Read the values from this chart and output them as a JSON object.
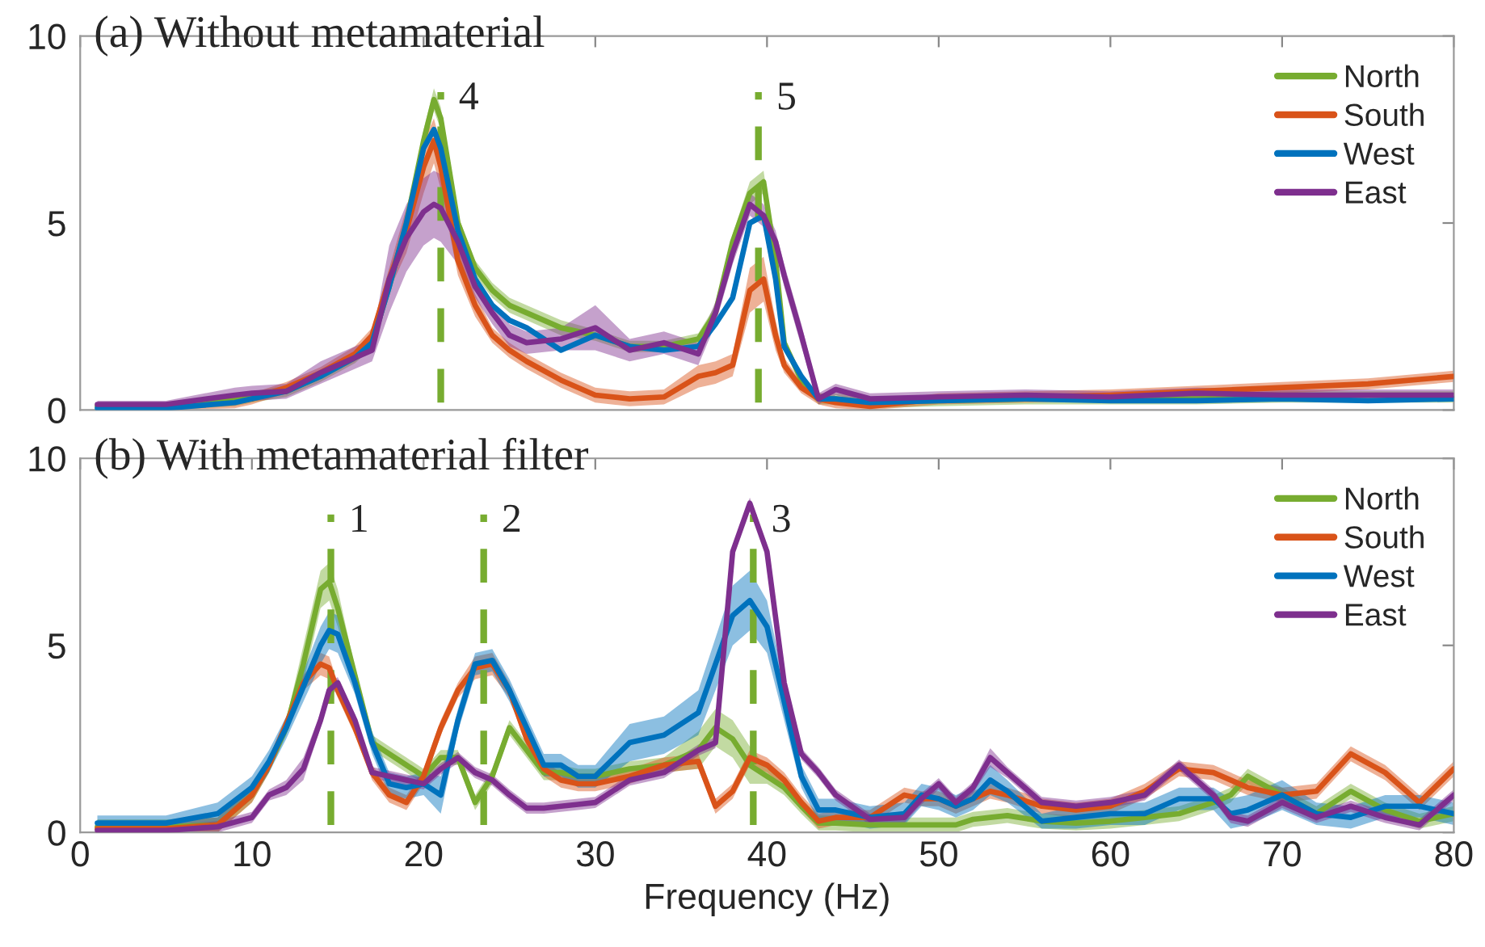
{
  "chart_data": [
    {
      "type": "line",
      "title": "(a) Without metamaterial",
      "xlim": [
        0,
        80
      ],
      "ylim": [
        0,
        10
      ],
      "xticks": [
        0,
        10,
        20,
        30,
        40,
        50,
        60,
        70,
        80
      ],
      "yticks": [
        0,
        5,
        10
      ],
      "tick_labels": "y",
      "grid": false,
      "legend": "top right",
      "x": [
        1,
        5,
        9,
        10,
        12,
        14,
        16,
        17,
        18,
        19,
        20,
        20.6,
        21,
        22,
        23,
        24,
        25,
        26,
        28,
        30,
        32,
        34,
        36,
        37,
        38,
        39,
        39.8,
        40.5,
        41,
        42,
        43,
        44,
        46,
        50,
        55,
        60,
        65,
        70,
        75,
        80
      ],
      "ref_lines": [
        {
          "axis": "x",
          "value": 21.0,
          "color": "#77ac30",
          "line_style": "dashed"
        },
        {
          "axis": "x",
          "value": 39.5,
          "color": "#77ac30",
          "line_style": "dashed"
        }
      ],
      "annotations": [
        {
          "text": "4",
          "x": 21.0,
          "y": 8.3
        },
        {
          "text": "5",
          "x": 39.5,
          "y": 8.3
        }
      ],
      "series": [
        {
          "name": "North",
          "color": "#77ac30",
          "values": [
            0.1,
            0.1,
            0.25,
            0.35,
            0.5,
            0.9,
            1.4,
            1.8,
            3.3,
            5.0,
            7.2,
            8.3,
            7.8,
            5.0,
            3.8,
            3.2,
            2.8,
            2.6,
            2.2,
            2.0,
            1.7,
            1.7,
            1.9,
            2.6,
            4.5,
            5.8,
            6.1,
            4.0,
            1.8,
            0.8,
            0.3,
            0.3,
            0.2,
            0.25,
            0.3,
            0.3,
            0.3,
            0.35,
            null,
            null
          ],
          "lower": [
            0,
            0,
            0.1,
            0.2,
            0.35,
            0.75,
            1.25,
            1.65,
            3.1,
            4.8,
            6.9,
            8.0,
            7.5,
            4.8,
            3.6,
            3.0,
            2.6,
            2.4,
            2.0,
            1.85,
            1.55,
            1.55,
            1.75,
            2.4,
            4.3,
            5.5,
            5.8,
            3.8,
            1.65,
            0.65,
            0.15,
            0.15,
            0.05,
            0.1,
            0.15,
            0.15,
            0.15,
            0.2,
            0.2,
            0.2
          ],
          "upper": [
            0.2,
            0.2,
            0.4,
            0.5,
            0.65,
            1.05,
            1.55,
            1.95,
            3.5,
            5.2,
            7.5,
            8.6,
            8.1,
            5.2,
            4.0,
            3.4,
            3.0,
            2.8,
            2.4,
            2.15,
            1.85,
            1.85,
            2.05,
            2.8,
            4.7,
            6.1,
            6.4,
            4.2,
            1.95,
            0.95,
            0.45,
            0.45,
            0.35,
            0.4,
            0.45,
            0.45,
            0.45,
            0.5,
            0.5,
            0.5
          ]
        },
        {
          "name": "South",
          "color": "#d95319",
          "values": [
            null,
            null,
            null,
            0.3,
            0.6,
            1.0,
            1.5,
            2.0,
            3.5,
            4.8,
            6.5,
            7.2,
            6.5,
            4.0,
            2.8,
            2.0,
            1.6,
            1.3,
            0.8,
            0.4,
            0.3,
            0.35,
            0.9,
            1.0,
            1.2,
            3.2,
            3.5,
            2.0,
            1.2,
            0.6,
            0.3,
            0.2,
            0.1,
            0.3,
            0.35,
            0.4,
            0.5,
            0.6,
            0.7,
            0.9
          ],
          "lower": [
            0,
            0,
            0.05,
            0.15,
            0.45,
            0.85,
            1.3,
            1.8,
            3.2,
            4.2,
            5.8,
            6.6,
            5.9,
            3.6,
            2.5,
            1.8,
            1.4,
            1.1,
            0.6,
            0.2,
            0.1,
            0.15,
            0.6,
            0.7,
            0.9,
            2.6,
            2.9,
            1.6,
            1.0,
            0.45,
            0.15,
            0.05,
            0,
            0.15,
            0.2,
            0.25,
            0.35,
            0.45,
            0.55,
            0.75
          ],
          "upper": [
            0.15,
            0.15,
            0.35,
            0.45,
            0.75,
            1.15,
            1.7,
            2.2,
            3.8,
            5.4,
            7.2,
            7.8,
            7.1,
            4.4,
            3.1,
            2.2,
            1.8,
            1.5,
            1.0,
            0.6,
            0.5,
            0.55,
            1.2,
            1.3,
            1.5,
            3.8,
            4.1,
            2.4,
            1.4,
            0.75,
            0.45,
            0.35,
            0.2,
            0.45,
            0.5,
            0.55,
            0.65,
            0.75,
            0.85,
            1.05
          ]
        },
        {
          "name": "West",
          "color": "#0072bd",
          "values": [
            0.05,
            0.05,
            0.2,
            0.3,
            0.5,
            0.9,
            1.4,
            1.8,
            3.3,
            5.0,
            7.0,
            7.5,
            7.0,
            4.8,
            3.5,
            2.8,
            2.4,
            2.2,
            1.6,
            2.0,
            1.7,
            1.6,
            1.7,
            2.3,
            3.0,
            5.0,
            5.2,
            3.5,
            1.7,
            0.9,
            0.3,
            0.3,
            0.2,
            0.25,
            0.3,
            0.25,
            0.25,
            0.3,
            0.25,
            0.3
          ]
        },
        {
          "name": "East",
          "color": "#7e2f8e",
          "values": [
            0.15,
            0.15,
            0.4,
            0.45,
            0.5,
            1.0,
            1.4,
            1.6,
            3.5,
            4.6,
            5.3,
            5.5,
            5.4,
            4.5,
            3.3,
            2.6,
            2.0,
            1.8,
            1.9,
            2.2,
            1.6,
            1.8,
            1.5,
            2.6,
            4.2,
            5.5,
            5.2,
            4.5,
            3.6,
            2.0,
            0.3,
            0.55,
            0.3,
            0.35,
            0.4,
            0.35,
            0.45,
            0.4,
            0.4,
            0.4
          ],
          "lower": [
            0.05,
            0.05,
            0.2,
            0.25,
            0.3,
            0.7,
            1.1,
            1.3,
            2.6,
            3.7,
            4.4,
            4.6,
            4.5,
            3.9,
            3.0,
            2.3,
            1.7,
            1.5,
            1.6,
            1.6,
            1.3,
            1.5,
            1.2,
            2.3,
            3.9,
            5.2,
            4.9,
            4.2,
            3.3,
            1.7,
            0.15,
            0.4,
            0.15,
            0.2,
            0.25,
            0.2,
            0.3,
            0.25,
            0.25,
            0.25
          ],
          "upper": [
            0.25,
            0.25,
            0.6,
            0.65,
            0.7,
            1.3,
            1.7,
            1.9,
            4.4,
            5.5,
            6.2,
            6.4,
            6.3,
            5.1,
            3.6,
            2.9,
            2.3,
            2.1,
            2.2,
            2.8,
            1.9,
            2.1,
            1.8,
            2.9,
            4.5,
            5.8,
            5.5,
            4.8,
            3.9,
            2.3,
            0.45,
            0.7,
            0.45,
            0.5,
            0.55,
            0.5,
            0.6,
            0.55,
            0.55,
            0.55
          ]
        }
      ]
    },
    {
      "type": "line",
      "title": "(b) With metamaterial filter",
      "xlabel": "Frequency (Hz)",
      "xlim": [
        0,
        80
      ],
      "ylim": [
        0,
        10
      ],
      "xticks": [
        0,
        10,
        20,
        30,
        40,
        50,
        60,
        70,
        80
      ],
      "yticks": [
        0,
        5,
        10
      ],
      "grid": false,
      "legend": "top right",
      "x": [
        1,
        5,
        8,
        10,
        11,
        12,
        13,
        14,
        14.5,
        15,
        16,
        17,
        18,
        19,
        20,
        21,
        22,
        23,
        24,
        25,
        26,
        27,
        28,
        29,
        30,
        32,
        34,
        36,
        37,
        38,
        39,
        40,
        41,
        42,
        43,
        44,
        46,
        48,
        49,
        50,
        51,
        52,
        53,
        54,
        56,
        58,
        60,
        62,
        64,
        66,
        67,
        68,
        70,
        72,
        74,
        76,
        78,
        80
      ],
      "ref_lines": [
        {
          "axis": "x",
          "value": 14.6,
          "color": "#77ac30",
          "line_style": "dashed"
        },
        {
          "axis": "x",
          "value": 23.5,
          "color": "#77ac30",
          "line_style": "dashed"
        },
        {
          "axis": "x",
          "value": 39.2,
          "color": "#77ac30",
          "line_style": "dashed"
        }
      ],
      "annotations": [
        {
          "text": "1",
          "x": 14.6,
          "y": 8.3
        },
        {
          "text": "2",
          "x": 23.5,
          "y": 8.3
        },
        {
          "text": "3",
          "x": 39.2,
          "y": 8.3
        }
      ],
      "series": [
        {
          "name": "North",
          "color": "#77ac30",
          "values": [
            0.15,
            0.15,
            0.2,
            1.0,
            1.8,
            2.8,
            4.5,
            6.5,
            6.7,
            6.0,
            4.2,
            2.4,
            2.1,
            1.8,
            1.5,
            2.0,
            2.0,
            0.8,
            1.5,
            2.8,
            2.2,
            1.6,
            1.6,
            1.5,
            1.5,
            1.7,
            1.8,
            2.2,
            2.8,
            2.5,
            1.8,
            1.5,
            1.2,
            0.7,
            0.25,
            0.25,
            0.2,
            0.2,
            0.2,
            0.2,
            0.2,
            0.35,
            0.4,
            0.45,
            0.3,
            0.25,
            0.3,
            0.4,
            0.5,
            0.8,
            1.0,
            1.5,
            1.0,
            0.5,
            1.1,
            0.6,
            0.3,
            0.5
          ],
          "lower": [
            0,
            0,
            0,
            0.8,
            1.6,
            2.6,
            4.0,
            6.0,
            6.2,
            5.5,
            4.0,
            2.2,
            1.9,
            1.6,
            1.3,
            1.8,
            1.8,
            0.6,
            1.3,
            2.6,
            2.0,
            1.4,
            1.4,
            1.3,
            1.3,
            1.5,
            1.6,
            1.7,
            2.3,
            2.0,
            1.3,
            1.3,
            1.0,
            0.5,
            0.05,
            0.05,
            0,
            0,
            0,
            0,
            0,
            0.15,
            0.2,
            0.25,
            0.1,
            0.05,
            0.1,
            0.2,
            0.3,
            0.6,
            0.8,
            1.3,
            0.8,
            0.3,
            0.9,
            0.4,
            0.1,
            0.3
          ],
          "upper": [
            0.35,
            0.35,
            0.4,
            1.2,
            2.0,
            3.0,
            5.0,
            7.0,
            7.2,
            6.5,
            4.4,
            2.6,
            2.3,
            2.0,
            1.7,
            2.2,
            2.2,
            1.0,
            1.7,
            3.0,
            2.4,
            1.8,
            1.8,
            1.7,
            1.7,
            1.9,
            2.0,
            2.7,
            3.3,
            3.0,
            2.3,
            1.7,
            1.4,
            0.9,
            0.45,
            0.45,
            0.4,
            0.4,
            0.4,
            0.4,
            0.4,
            0.55,
            0.6,
            0.65,
            0.5,
            0.45,
            0.5,
            0.6,
            0.7,
            1.0,
            1.2,
            1.7,
            1.2,
            0.7,
            1.3,
            0.8,
            0.5,
            0.7
          ]
        },
        {
          "name": "South",
          "color": "#d95319",
          "values": [
            0.1,
            0.1,
            0.2,
            1.0,
            1.8,
            2.9,
            4.0,
            4.5,
            4.4,
            3.8,
            2.8,
            1.6,
            1.0,
            0.8,
            1.5,
            2.8,
            3.8,
            4.4,
            4.5,
            3.8,
            2.5,
            1.7,
            1.4,
            1.3,
            1.3,
            1.5,
            1.8,
            1.9,
            0.7,
            1.1,
            2.0,
            1.8,
            1.4,
            0.8,
            0.3,
            0.4,
            0.4,
            1.0,
            0.9,
            0.9,
            0.7,
            0.9,
            1.1,
            1.0,
            0.7,
            0.6,
            0.7,
            1.1,
            1.7,
            1.6,
            1.4,
            1.2,
            1.0,
            1.1,
            2.1,
            1.6,
            0.8,
            1.7
          ],
          "lower": [
            0,
            0,
            0,
            0.8,
            1.6,
            2.7,
            3.8,
            4.2,
            4.1,
            3.6,
            2.6,
            1.4,
            0.8,
            0.6,
            1.3,
            2.6,
            3.6,
            4.1,
            4.2,
            3.6,
            2.3,
            1.5,
            1.2,
            1.1,
            1.1,
            1.3,
            1.6,
            1.7,
            0.5,
            0.9,
            1.8,
            1.6,
            1.2,
            0.6,
            0.1,
            0.2,
            0.2,
            0.8,
            0.7,
            0.7,
            0.5,
            0.7,
            0.9,
            0.8,
            0.5,
            0.4,
            0.5,
            0.9,
            1.5,
            1.4,
            1.2,
            1.0,
            0.8,
            0.9,
            1.9,
            1.4,
            0.6,
            1.5
          ],
          "upper": [
            0.3,
            0.3,
            0.4,
            1.2,
            2.0,
            3.1,
            4.2,
            4.8,
            4.7,
            4.0,
            3.0,
            1.8,
            1.2,
            1.0,
            1.7,
            3.0,
            4.0,
            4.7,
            4.8,
            4.0,
            2.7,
            1.9,
            1.6,
            1.5,
            1.5,
            1.7,
            2.0,
            2.1,
            0.9,
            1.3,
            2.2,
            2.0,
            1.6,
            1.0,
            0.5,
            0.6,
            0.6,
            1.2,
            1.1,
            1.1,
            0.9,
            1.1,
            1.3,
            1.2,
            0.9,
            0.8,
            0.9,
            1.3,
            1.9,
            1.8,
            1.6,
            1.4,
            1.2,
            1.3,
            2.3,
            1.8,
            1.0,
            1.9
          ]
        },
        {
          "name": "West",
          "color": "#0072bd",
          "values": [
            0.25,
            0.25,
            0.5,
            1.2,
            1.9,
            2.8,
            3.9,
            5.0,
            5.4,
            5.3,
            4.0,
            2.4,
            1.3,
            1.2,
            1.3,
            1.0,
            3.0,
            4.5,
            4.6,
            3.8,
            2.8,
            1.8,
            1.8,
            1.5,
            1.5,
            2.4,
            2.6,
            3.2,
            4.5,
            5.8,
            6.2,
            5.5,
            3.5,
            1.5,
            0.6,
            0.6,
            0.4,
            0.5,
            1.0,
            0.9,
            0.7,
            0.9,
            1.4,
            1.1,
            0.3,
            0.4,
            0.5,
            0.5,
            0.9,
            0.9,
            0.5,
            0.6,
            1.0,
            0.5,
            0.4,
            0.7,
            0.7,
            0.5
          ],
          "lower": [
            0.05,
            0.05,
            0.2,
            0.9,
            1.6,
            2.5,
            3.5,
            4.5,
            4.9,
            4.8,
            3.7,
            2.1,
            1.0,
            0.9,
            1.0,
            0.5,
            2.7,
            4.2,
            4.3,
            3.5,
            2.5,
            1.5,
            1.5,
            1.2,
            1.2,
            1.9,
            2.1,
            2.6,
            3.8,
            5.0,
            5.4,
            4.8,
            3.0,
            1.2,
            0.3,
            0.3,
            0.1,
            0.2,
            0.7,
            0.6,
            0.4,
            0.6,
            1.0,
            0.8,
            0.1,
            0.1,
            0.2,
            0.2,
            0.6,
            0.6,
            0.1,
            0.2,
            0.6,
            0.2,
            0.1,
            0.4,
            0.4,
            0.2
          ],
          "upper": [
            0.45,
            0.45,
            0.8,
            1.5,
            2.2,
            3.1,
            4.3,
            5.5,
            5.9,
            5.8,
            4.3,
            2.7,
            1.6,
            1.5,
            1.6,
            1.5,
            3.3,
            4.8,
            4.9,
            4.1,
            3.1,
            2.1,
            2.1,
            1.8,
            1.8,
            2.9,
            3.1,
            3.8,
            5.2,
            6.6,
            7.0,
            6.2,
            4.0,
            1.8,
            0.9,
            0.9,
            0.7,
            0.8,
            1.3,
            1.2,
            1.0,
            1.2,
            1.8,
            1.4,
            0.5,
            0.7,
            0.8,
            0.8,
            1.2,
            1.2,
            0.9,
            1.0,
            1.4,
            0.8,
            0.7,
            1.0,
            1.0,
            0.8
          ]
        },
        {
          "name": "East",
          "color": "#7e2f8e",
          "values": [
            0.05,
            0.05,
            0.15,
            0.4,
            1.0,
            1.2,
            1.7,
            3.0,
            3.8,
            4.0,
            3.0,
            1.6,
            1.5,
            1.4,
            1.3,
            1.7,
            2.0,
            1.6,
            1.4,
            1.0,
            0.65,
            0.65,
            0.7,
            0.75,
            0.8,
            1.4,
            1.6,
            2.2,
            2.4,
            7.5,
            8.8,
            7.5,
            4.0,
            2.1,
            1.6,
            1.0,
            0.35,
            0.4,
            0.9,
            1.3,
            0.8,
            1.2,
            2.0,
            1.6,
            0.8,
            0.7,
            0.8,
            1.0,
            1.8,
            1.0,
            0.4,
            0.3,
            0.8,
            0.4,
            0.7,
            0.4,
            0.2,
            1.0
          ],
          "lower": [
            0,
            0,
            0,
            0.25,
            0.85,
            1.0,
            1.4,
            2.8,
            3.6,
            3.85,
            2.85,
            1.45,
            1.35,
            1.25,
            1.15,
            1.55,
            1.85,
            1.45,
            1.25,
            0.85,
            0.5,
            0.5,
            0.55,
            0.6,
            0.65,
            1.25,
            1.45,
            2.05,
            2.25,
            7.35,
            8.65,
            7.35,
            3.85,
            1.95,
            1.45,
            0.85,
            0.2,
            0.25,
            0.75,
            1.15,
            0.65,
            1.05,
            1.75,
            1.45,
            0.65,
            0.55,
            0.65,
            0.85,
            1.65,
            0.85,
            0.25,
            0.15,
            0.65,
            0.25,
            0.55,
            0.25,
            0.05,
            0.85
          ],
          "upper": [
            0.2,
            0.2,
            0.3,
            0.55,
            1.15,
            1.4,
            2.0,
            3.2,
            4.0,
            4.15,
            3.15,
            1.75,
            1.65,
            1.55,
            1.45,
            1.85,
            2.15,
            1.75,
            1.55,
            1.15,
            0.8,
            0.8,
            0.85,
            0.9,
            0.95,
            1.55,
            1.75,
            2.35,
            2.55,
            7.65,
            8.95,
            7.65,
            4.15,
            2.25,
            1.75,
            1.15,
            0.5,
            0.55,
            1.05,
            1.45,
            0.95,
            1.35,
            2.25,
            1.75,
            0.95,
            0.85,
            0.95,
            1.15,
            1.95,
            1.15,
            0.55,
            0.45,
            0.95,
            0.55,
            0.85,
            0.55,
            0.35,
            1.15
          ]
        }
      ]
    }
  ]
}
